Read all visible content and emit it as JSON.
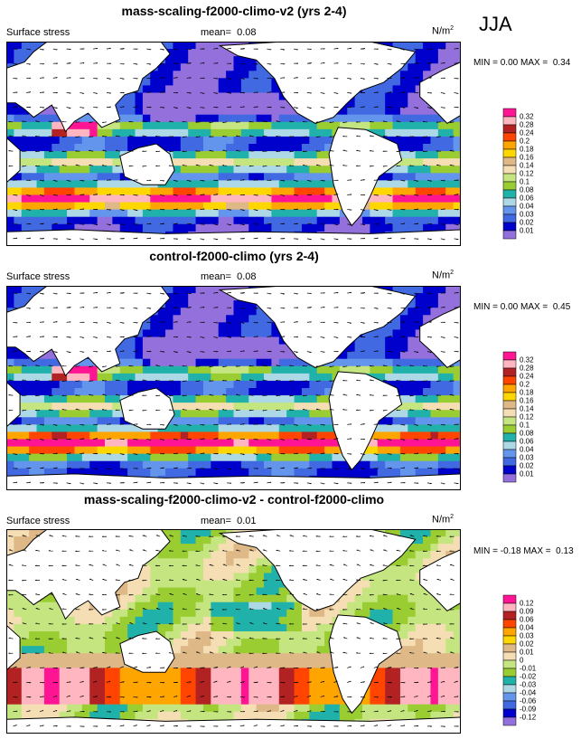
{
  "season": "JJA",
  "palette": [
    "#9370db",
    "#0000cd",
    "#4169e1",
    "#6495ed",
    "#add8e6",
    "#20b2aa",
    "#9acd32",
    "#c5e580",
    "#f5deb3",
    "#deb887",
    "#ffd700",
    "#ffa500",
    "#ff4500",
    "#b22222",
    "#ffb6c1",
    "#ff1493"
  ],
  "chart_data": [
    {
      "type": "heatmap",
      "title": "mass-scaling-f2000-climo-v2 (yrs 2-4)",
      "variable": "Surface stress",
      "mean_label": "mean=",
      "mean": "0.08",
      "units": "N/m",
      "units_exp": "2",
      "min_label": "MIN =",
      "min": "0.00",
      "max_label": "MAX =",
      "max": "0.34",
      "levels": [
        "0.01",
        "0.02",
        "0.03",
        "0.04",
        "0.06",
        "0.08",
        "0.1",
        "0.12",
        "0.14",
        "0.16",
        "0.18",
        "0.2",
        "0.24",
        "0.28",
        "0.32"
      ]
    },
    {
      "type": "heatmap",
      "title": "control-f2000-climo (yrs 2-4)",
      "variable": "Surface stress",
      "mean_label": "mean=",
      "mean": "0.08",
      "units": "N/m",
      "units_exp": "2",
      "min_label": "MIN =",
      "min": "0.00",
      "max_label": "MAX =",
      "max": "0.45",
      "levels": [
        "0.01",
        "0.02",
        "0.03",
        "0.04",
        "0.06",
        "0.08",
        "0.1",
        "0.12",
        "0.14",
        "0.16",
        "0.18",
        "0.2",
        "0.24",
        "0.28",
        "0.32"
      ]
    },
    {
      "type": "heatmap",
      "title": "mass-scaling-f2000-climo-v2 - control-f2000-climo",
      "variable": "Surface stress",
      "mean_label": "mean=",
      "mean": "0.01",
      "units": "N/m",
      "units_exp": "2",
      "min_label": "MIN =",
      "min": "-0.18",
      "max_label": "MAX =",
      "max": "0.13",
      "levels": [
        "-0.12",
        "-0.09",
        "-0.06",
        "-0.04",
        "-0.03",
        "-0.02",
        "-0.01",
        "0",
        "0.01",
        "0.02",
        "0.03",
        "0.04",
        "0.06",
        "0.09",
        "0.12"
      ]
    }
  ]
}
